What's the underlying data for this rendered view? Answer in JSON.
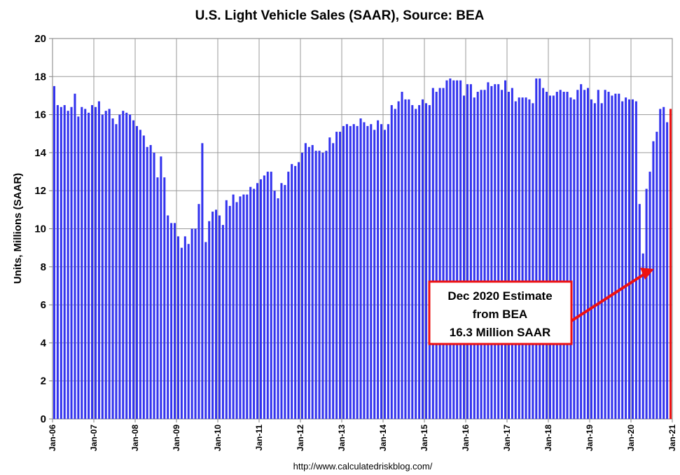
{
  "chart_data": {
    "type": "bar",
    "title": "U.S. Light Vehicle Sales (SAAR), Source: BEA",
    "ylabel": "Units, Millions (SAAR)",
    "xlabel": "",
    "ylim": [
      0,
      20
    ],
    "yticks": [
      "0",
      "2",
      "4",
      "6",
      "8",
      "10",
      "12",
      "14",
      "16",
      "18",
      "20"
    ],
    "xticks": [
      "Jan-06",
      "Jan-07",
      "Jan-08",
      "Jan-09",
      "Jan-10",
      "Jan-11",
      "Jan-12",
      "Jan-13",
      "Jan-14",
      "Jan-15",
      "Jan-16",
      "Jan-17",
      "Jan-18",
      "Jan-19",
      "Jan-20",
      "Jan-21"
    ],
    "grid": true,
    "bar_color": "#3333ee",
    "highlight_color": "#ee1111",
    "highlight_index": 179,
    "start_month": "Jan-06",
    "values": [
      17.5,
      16.5,
      16.4,
      16.5,
      16.2,
      16.4,
      17.1,
      15.9,
      16.4,
      16.3,
      16.1,
      16.5,
      16.4,
      16.7,
      16.0,
      16.2,
      16.3,
      15.8,
      15.5,
      16.0,
      16.2,
      16.1,
      16.0,
      15.7,
      15.4,
      15.2,
      14.9,
      14.3,
      14.4,
      14.0,
      12.7,
      13.8,
      12.7,
      10.7,
      10.3,
      10.3,
      9.6,
      9.0,
      9.6,
      9.2,
      10.0,
      10.0,
      11.3,
      14.5,
      9.3,
      10.4,
      10.9,
      11.0,
      10.7,
      10.2,
      11.5,
      11.2,
      11.8,
      11.4,
      11.7,
      11.8,
      11.8,
      12.2,
      12.1,
      12.4,
      12.6,
      12.8,
      13.0,
      13.0,
      12.0,
      11.6,
      12.4,
      12.3,
      13.0,
      13.4,
      13.3,
      13.5,
      14.0,
      14.5,
      14.3,
      14.4,
      14.1,
      14.1,
      14.0,
      14.1,
      14.8,
      14.5,
      15.1,
      15.1,
      15.4,
      15.5,
      15.4,
      15.5,
      15.4,
      15.8,
      15.6,
      15.4,
      15.5,
      15.2,
      15.7,
      15.5,
      15.2,
      15.5,
      16.5,
      16.3,
      16.7,
      17.2,
      16.8,
      16.8,
      16.5,
      16.3,
      16.5,
      16.8,
      16.6,
      16.5,
      17.4,
      17.2,
      17.4,
      17.4,
      17.8,
      17.9,
      17.8,
      17.8,
      17.8,
      17.0,
      17.6,
      17.6,
      16.9,
      17.2,
      17.3,
      17.3,
      17.7,
      17.5,
      17.6,
      17.6,
      17.3,
      17.8,
      17.2,
      17.4,
      16.7,
      16.9,
      16.9,
      16.9,
      16.8,
      16.6,
      17.9,
      17.9,
      17.4,
      17.2,
      17.0,
      17.0,
      17.2,
      17.3,
      17.2,
      17.2,
      16.9,
      16.8,
      17.3,
      17.6,
      17.3,
      17.4,
      16.8,
      16.6,
      17.3,
      16.6,
      17.3,
      17.2,
      17.0,
      17.1,
      17.1,
      16.7,
      16.9,
      16.8,
      16.8,
      16.7,
      11.3,
      8.7,
      12.1,
      13.0,
      14.6,
      15.1,
      16.3,
      16.4,
      15.6,
      16.3
    ]
  },
  "annotation": {
    "lines": [
      "Dec 2020 Estimate",
      "from BEA",
      "16.3 Million SAAR"
    ],
    "border_color": "#ee1111",
    "arrow_color": "#ee1111"
  },
  "source_text": "http://www.calculatedriskblog.com/"
}
